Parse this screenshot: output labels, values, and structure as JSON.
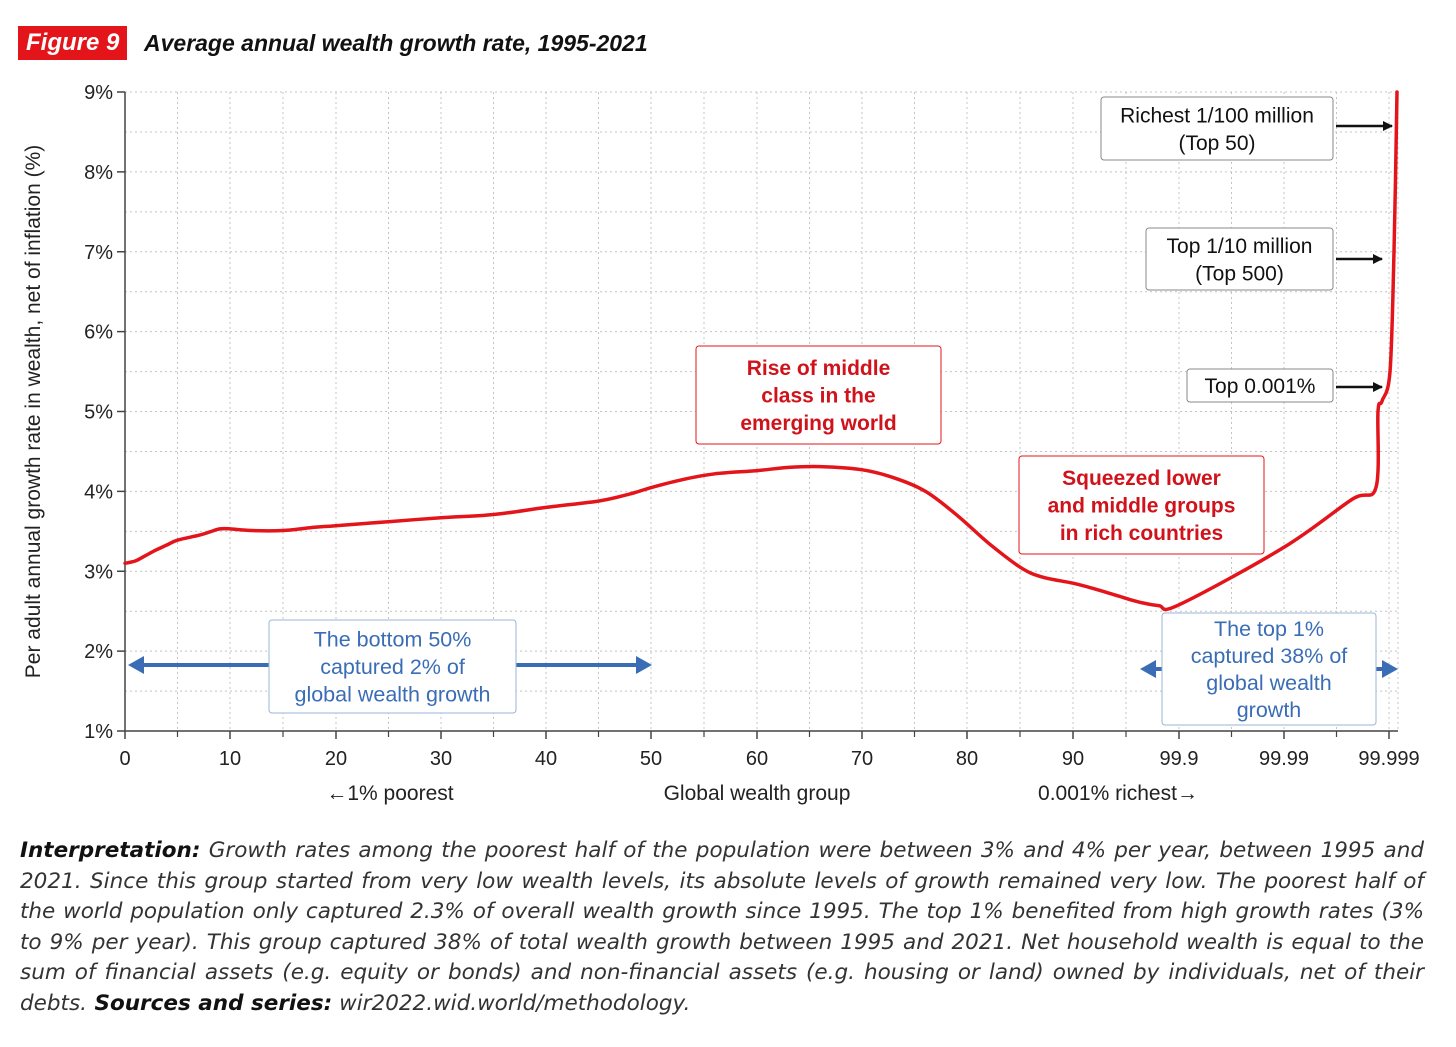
{
  "figure": {
    "badge": "Figure 9",
    "title": "Average annual wealth growth rate, 1995-2021"
  },
  "chart_data": {
    "type": "line",
    "ylabel": "Per adult annual growth rate in wealth, net of inflation (%)",
    "xlabel": "Global wealth group",
    "xlabel_left": "←1% poorest",
    "xlabel_right": "0.001% richest→",
    "ylim": [
      1,
      9
    ],
    "yticks": [
      "1%",
      "2%",
      "3%",
      "4%",
      "5%",
      "6%",
      "7%",
      "8%",
      "9%"
    ],
    "xticks": [
      "0",
      "10",
      "20",
      "30",
      "40",
      "50",
      "60",
      "70",
      "80",
      "90",
      "99.9",
      "99.99",
      "99.999"
    ],
    "grid": true,
    "series": [
      {
        "color": "#e3151b",
        "points": [
          [
            0,
            3.1
          ],
          [
            1,
            3.13
          ],
          [
            2,
            3.2
          ],
          [
            3,
            3.27
          ],
          [
            4,
            3.33
          ],
          [
            5,
            3.39
          ],
          [
            7,
            3.45
          ],
          [
            8,
            3.49
          ],
          [
            9,
            3.53
          ],
          [
            10,
            3.53
          ],
          [
            12,
            3.51
          ],
          [
            15,
            3.51
          ],
          [
            18,
            3.55
          ],
          [
            20,
            3.57
          ],
          [
            25,
            3.62
          ],
          [
            30,
            3.67
          ],
          [
            35,
            3.71
          ],
          [
            40,
            3.8
          ],
          [
            45,
            3.88
          ],
          [
            48,
            3.97
          ],
          [
            50,
            4.05
          ],
          [
            53,
            4.15
          ],
          [
            56,
            4.22
          ],
          [
            60,
            4.26
          ],
          [
            63,
            4.3
          ],
          [
            66,
            4.31
          ],
          [
            70,
            4.27
          ],
          [
            73,
            4.17
          ],
          [
            76,
            4.0
          ],
          [
            79,
            3.7
          ],
          [
            82,
            3.35
          ],
          [
            85,
            3.05
          ],
          [
            87,
            2.93
          ],
          [
            90,
            2.85
          ],
          [
            92,
            2.78
          ],
          [
            94,
            2.7
          ],
          [
            96,
            2.62
          ],
          [
            98,
            2.57
          ],
          [
            99.9,
            2.58
          ],
          [
            99.99,
            3.3
          ],
          [
            99.995,
            3.9
          ],
          [
            99.998,
            4.05
          ],
          [
            99.9985,
            5.0
          ],
          [
            99.9989,
            5.13
          ],
          [
            99.99905,
            5.5
          ],
          [
            99.99915,
            7.0
          ],
          [
            99.99925,
            9.0
          ]
        ]
      }
    ],
    "annotations": {
      "rise_middle_class": [
        "Rise of middle",
        "class in the",
        "emerging world"
      ],
      "squeezed_groups": [
        "Squeezed lower",
        "and middle groups",
        "in rich countries"
      ],
      "bottom50": [
        "The bottom 50%",
        "captured 2% of",
        "global wealth growth"
      ],
      "top1": [
        "The top 1%",
        "captured 38% of",
        "global wealth",
        "growth"
      ],
      "richest_100m": [
        "Richest 1/100 million",
        "(Top 50)"
      ],
      "top_10m": [
        "Top 1/10 million",
        "(Top 500)"
      ],
      "top_0001": [
        "Top 0.001%"
      ]
    },
    "colors": {
      "line": "#e3151b",
      "red_text": "#d0121b",
      "blue": "#3a6db5",
      "grid": "#bdbdbd"
    }
  },
  "interpretation": {
    "lead": "Interpretation:",
    "body": " Growth rates among the poorest half of the population were between 3% and 4% per year, between 1995 and 2021. Since this group started from very low wealth levels, its absolute levels of growth remained very low. The poorest half of the world population only captured 2.3% of overall wealth growth since 1995. The top 1% benefited from high growth rates (3% to 9% per year). This group captured 38% of total wealth growth between 1995 and 2021. Net household wealth is equal to the sum of financial assets (e.g. equity or bonds) and non-financial assets (e.g. housing or land) owned by individuals, net of their debts.",
    "sources_label": " Sources and series:",
    "sources_value": " wir2022.wid.world/methodology."
  }
}
